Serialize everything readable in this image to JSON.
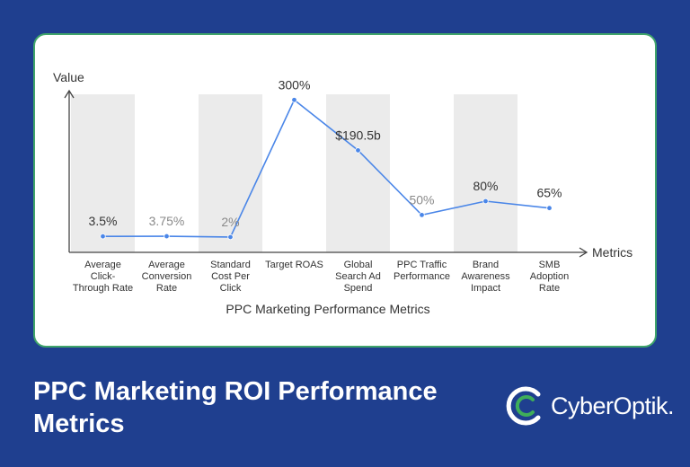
{
  "chart_data": {
    "type": "line",
    "ylabel": "Value",
    "xlabel": "Metrics",
    "title": "PPC Marketing Performance Metrics",
    "categories": [
      "Average Click-Through Rate",
      "Average Conversion Rate",
      "Standard Cost Per Click",
      "Target ROAS",
      "Global Search Ad Spend",
      "PPC Traffic Performance",
      "Brand Awareness Impact",
      "SMB Adoption Rate"
    ],
    "category_lines": [
      [
        "Average",
        "Click-",
        "Through Rate"
      ],
      [
        "Average",
        "Conversion",
        "Rate"
      ],
      [
        "Standard",
        "Cost Per",
        "Click"
      ],
      [
        "Target ROAS"
      ],
      [
        "Global",
        "Search Ad",
        "Spend"
      ],
      [
        "PPC Traffic",
        "Performance"
      ],
      [
        "Brand",
        "Awareness",
        "Impact"
      ],
      [
        "SMB",
        "Adoption",
        "Rate"
      ]
    ],
    "data_labels": [
      "3.5%",
      "3.75%",
      "2%",
      "300%",
      "$190.5b",
      "50%",
      "80%",
      "65%"
    ],
    "label_colors": [
      "#333333",
      "#8a8a8a",
      "#8a8a8a",
      "#333333",
      "#333333",
      "#8a8a8a",
      "#333333",
      "#333333"
    ],
    "values": [
      3.5,
      3.75,
      2,
      300,
      190.5,
      50,
      80,
      65
    ],
    "shaded_columns": [
      0,
      2,
      4,
      6
    ],
    "line_color": "#4a86e8",
    "band_color": "#ebebeb"
  },
  "footer": {
    "title": "PPC Marketing ROI Performance Metrics",
    "brand": "CyberOptik."
  },
  "colors": {
    "background": "#1f3f8f",
    "card_border": "#3fa46a",
    "logo_green": "#3fae5a"
  }
}
